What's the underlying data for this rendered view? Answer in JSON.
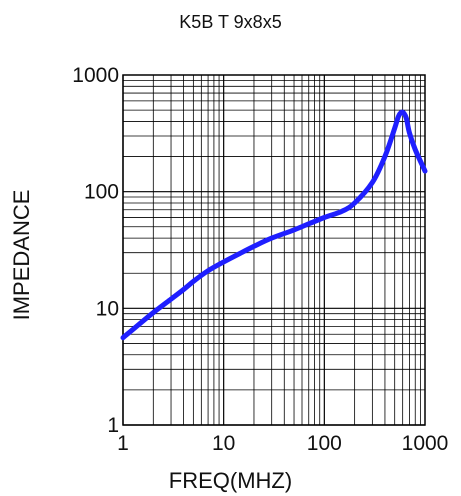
{
  "chart_data": {
    "type": "line",
    "title": "K5B T 9x8x5",
    "xlabel": "FREQ(MHZ)",
    "ylabel": "IMPEDANCE",
    "xscale": "log",
    "yscale": "log",
    "xlim": [
      1,
      1000
    ],
    "ylim": [
      1,
      1000
    ],
    "xticks": [
      "1",
      "10",
      "100",
      "1000"
    ],
    "yticks": [
      "1",
      "10",
      "100",
      "1000"
    ],
    "grid": true,
    "series": [
      {
        "color": "#1f1fff",
        "x": [
          1,
          1.5,
          2,
          3,
          4,
          5,
          7,
          10,
          15,
          20,
          30,
          50,
          70,
          100,
          150,
          200,
          300,
          400,
          500,
          550,
          600,
          650,
          700,
          800,
          1000
        ],
        "y": [
          5.6,
          7.5,
          9.2,
          12,
          14.5,
          17,
          21,
          25,
          30,
          34,
          40,
          47,
          53,
          60,
          68,
          80,
          120,
          200,
          350,
          450,
          480,
          430,
          320,
          230,
          150
        ]
      }
    ]
  }
}
